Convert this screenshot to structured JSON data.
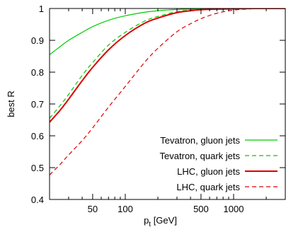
{
  "chart_data": {
    "type": "line",
    "title": "",
    "xlabel": "p",
    "xlabel_sub": "t",
    "xlabel_unit": " [GeV]",
    "ylabel": "best R",
    "x_scale": "log",
    "xlim": [
      20,
      3000
    ],
    "ylim": [
      0.4,
      1.0
    ],
    "x_ticks": [
      50,
      100,
      500,
      1000
    ],
    "x_tick_labels": [
      "50",
      "100",
      "500",
      "1000"
    ],
    "y_ticks": [
      0.4,
      0.5,
      0.6,
      0.7,
      0.8,
      0.9,
      1.0
    ],
    "y_tick_labels": [
      "0.4",
      "0.5",
      "0.6",
      "0.7",
      "0.8",
      "0.9",
      "1"
    ],
    "grid": false,
    "legend_position": "bottom-right",
    "series": [
      {
        "name": "Tevatron, gluon jets",
        "color": "#00cc00",
        "dash": "solid",
        "width": "thin",
        "x": [
          20,
          25,
          30,
          40,
          50,
          70,
          100,
          150,
          200,
          300,
          400,
          500,
          700,
          1000,
          1500,
          2000,
          3000
        ],
        "y": [
          0.855,
          0.88,
          0.9,
          0.925,
          0.943,
          0.963,
          0.977,
          0.988,
          0.993,
          0.997,
          0.998,
          0.999,
          1.0,
          1.0,
          1.0,
          1.0,
          1.0
        ]
      },
      {
        "name": "Tevatron, quark jets",
        "color": "#00cc00",
        "dash": "dashed",
        "width": "thin",
        "x": [
          20,
          25,
          30,
          40,
          50,
          70,
          100,
          150,
          200,
          300,
          400,
          500,
          700,
          1000,
          1500,
          2000,
          3000
        ],
        "y": [
          0.655,
          0.695,
          0.73,
          0.79,
          0.83,
          0.885,
          0.925,
          0.96,
          0.975,
          0.99,
          0.995,
          0.997,
          0.999,
          1.0,
          1.0,
          1.0,
          1.0
        ]
      },
      {
        "name": "LHC, gluon jets",
        "color": "#dd0000",
        "dash": "solid",
        "width": "thick",
        "x": [
          20,
          25,
          30,
          40,
          50,
          70,
          100,
          150,
          200,
          300,
          400,
          500,
          700,
          1000,
          1500,
          2000,
          3000
        ],
        "y": [
          0.643,
          0.68,
          0.715,
          0.773,
          0.815,
          0.87,
          0.915,
          0.953,
          0.97,
          0.987,
          0.993,
          0.996,
          0.998,
          0.999,
          1.0,
          1.0,
          1.0
        ]
      },
      {
        "name": "LHC, quark jets",
        "color": "#dd0000",
        "dash": "dashed",
        "width": "thin",
        "x": [
          20,
          25,
          30,
          40,
          50,
          70,
          100,
          150,
          200,
          300,
          400,
          500,
          700,
          1000,
          1500,
          2000,
          3000
        ],
        "y": [
          0.477,
          0.51,
          0.54,
          0.585,
          0.625,
          0.69,
          0.755,
          0.83,
          0.875,
          0.927,
          0.952,
          0.968,
          0.985,
          0.995,
          0.999,
          1.0,
          1.0
        ]
      }
    ]
  }
}
